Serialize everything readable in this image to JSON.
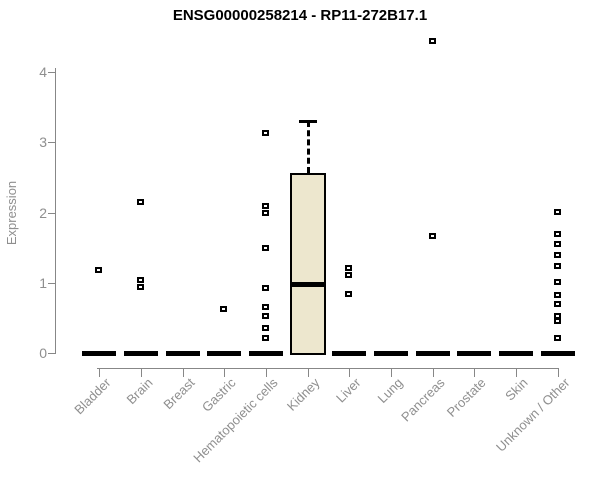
{
  "chart_data": {
    "type": "boxplot",
    "title": "ENSG00000258214 - RP11-272B17.1",
    "xlabel": "",
    "ylabel": "Expression",
    "ylim": [
      0,
      4.5
    ],
    "yticks": [
      0,
      1,
      2,
      3,
      4
    ],
    "grid": false,
    "categories": [
      "Bladder",
      "Brain",
      "Breast",
      "Gastric",
      "Hematopoietic cells",
      "Kidney",
      "Liver",
      "Lung",
      "Pancreas",
      "Prostate",
      "Skin",
      "Unknown / Other"
    ],
    "boxes": [
      {
        "category": "Bladder",
        "whisker_low": 0,
        "q1": 0,
        "median": 0,
        "q3": 0,
        "whisker_high": 0,
        "outliers": [
          1.18
        ]
      },
      {
        "category": "Brain",
        "whisker_low": 0,
        "q1": 0,
        "median": 0,
        "q3": 0,
        "whisker_high": 0,
        "outliers": [
          2.15,
          1.04,
          0.94
        ]
      },
      {
        "category": "Breast",
        "whisker_low": 0,
        "q1": 0,
        "median": 0,
        "q3": 0,
        "whisker_high": 0,
        "outliers": []
      },
      {
        "category": "Gastric",
        "whisker_low": 0,
        "q1": 0,
        "median": 0,
        "q3": 0,
        "whisker_high": 0,
        "outliers": [
          0.63
        ]
      },
      {
        "category": "Hematopoietic cells",
        "whisker_low": 0,
        "q1": 0,
        "median": 0,
        "q3": 0,
        "whisker_high": 0,
        "outliers": [
          3.13,
          2.1,
          2.0,
          1.5,
          0.93,
          0.66,
          0.52,
          0.36,
          0.21
        ]
      },
      {
        "category": "Kidney",
        "whisker_low": 0,
        "q1": 0,
        "median": 0.98,
        "q3": 2.56,
        "whisker_high": 3.3,
        "outliers": []
      },
      {
        "category": "Liver",
        "whisker_low": 0,
        "q1": 0,
        "median": 0,
        "q3": 0,
        "whisker_high": 0,
        "outliers": [
          1.21,
          1.11,
          0.84
        ]
      },
      {
        "category": "Lung",
        "whisker_low": 0,
        "q1": 0,
        "median": 0,
        "q3": 0,
        "whisker_high": 0,
        "outliers": []
      },
      {
        "category": "Pancreas",
        "whisker_low": 0,
        "q1": 0,
        "median": 0,
        "q3": 0,
        "whisker_high": 0,
        "outliers": [
          4.45,
          1.67
        ]
      },
      {
        "category": "Prostate",
        "whisker_low": 0,
        "q1": 0,
        "median": 0,
        "q3": 0,
        "whisker_high": 0,
        "outliers": []
      },
      {
        "category": "Skin",
        "whisker_low": 0,
        "q1": 0,
        "median": 0,
        "q3": 0,
        "whisker_high": 0,
        "outliers": []
      },
      {
        "category": "Unknown / Other",
        "whisker_low": 0,
        "q1": 0,
        "median": 0,
        "q3": 0,
        "whisker_high": 0,
        "outliers": [
          2.01,
          1.7,
          1.55,
          1.39,
          1.24,
          1.01,
          0.82,
          0.7,
          0.53,
          0.45,
          0.22
        ]
      }
    ],
    "colors": {
      "box_fill": "#EDE7CE",
      "box_border": "#000000",
      "median": "#000000",
      "outlier_border": "#000000",
      "outlier_fill": "#ffffff",
      "axis": "#878787",
      "tick_text": "#8f8f8f",
      "title_text": "#000000"
    },
    "legend": null
  }
}
